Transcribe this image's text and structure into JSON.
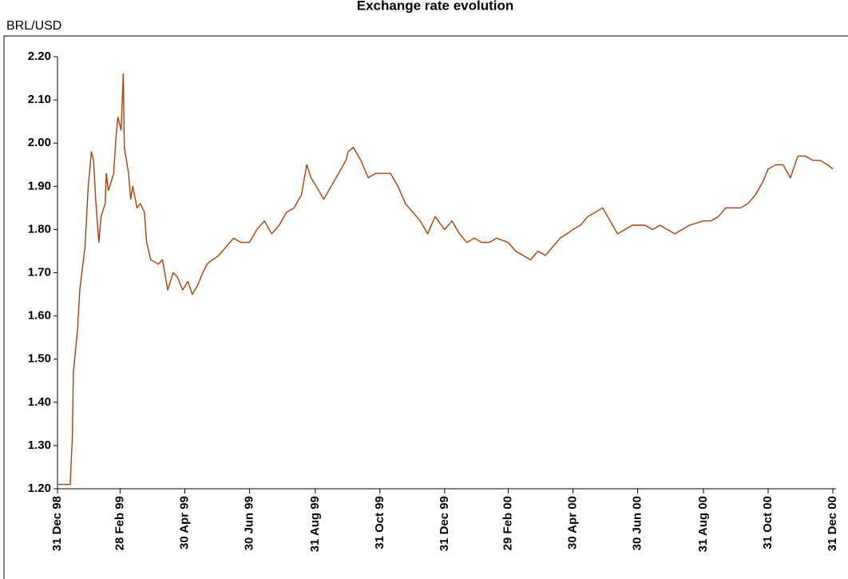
{
  "chart_data": {
    "type": "line",
    "title": "Exchange rate evolution",
    "y_label": "BRL/USD",
    "x": [
      "1998-12-31",
      "1999-01-07",
      "1999-01-12",
      "1999-01-14",
      "1999-01-15",
      "1999-01-19",
      "1999-01-21",
      "1999-01-26",
      "1999-01-29",
      "1999-02-01",
      "1999-02-03",
      "1999-02-05",
      "1999-02-08",
      "1999-02-10",
      "1999-02-14",
      "1999-02-15",
      "1999-02-17",
      "1999-02-22",
      "1999-02-24",
      "1999-02-26",
      "1999-03-01",
      "1999-03-03",
      "1999-03-04",
      "1999-03-08",
      "1999-03-10",
      "1999-03-12",
      "1999-03-16",
      "1999-03-19",
      "1999-03-23",
      "1999-03-25",
      "1999-03-29",
      "1999-04-05",
      "1999-04-09",
      "1999-04-14",
      "1999-04-19",
      "1999-04-23",
      "1999-04-28",
      "1999-05-03",
      "1999-05-07",
      "1999-05-12",
      "1999-05-17",
      "1999-05-21",
      "1999-05-26",
      "1999-06-01",
      "1999-06-08",
      "1999-06-15",
      "1999-06-22",
      "1999-06-30",
      "1999-07-07",
      "1999-07-14",
      "1999-07-21",
      "1999-07-28",
      "1999-08-04",
      "1999-08-11",
      "1999-08-18",
      "1999-08-23",
      "1999-08-27",
      "1999-09-01",
      "1999-09-08",
      "1999-09-15",
      "1999-09-22",
      "1999-09-29",
      "1999-10-01",
      "1999-10-06",
      "1999-10-13",
      "1999-10-20",
      "1999-10-27",
      "1999-11-03",
      "1999-11-10",
      "1999-11-17",
      "1999-11-24",
      "1999-12-01",
      "1999-12-08",
      "1999-12-15",
      "1999-12-22",
      "1999-12-31",
      "2000-01-07",
      "2000-01-14",
      "2000-01-21",
      "2000-01-28",
      "2000-02-04",
      "2000-02-11",
      "2000-02-18",
      "2000-02-29",
      "2000-03-07",
      "2000-03-14",
      "2000-03-21",
      "2000-03-28",
      "2000-04-04",
      "2000-04-11",
      "2000-04-18",
      "2000-04-30",
      "2000-05-07",
      "2000-05-14",
      "2000-05-21",
      "2000-05-28",
      "2000-06-04",
      "2000-06-11",
      "2000-06-18",
      "2000-06-25",
      "2000-06-30",
      "2000-07-07",
      "2000-07-14",
      "2000-07-21",
      "2000-07-28",
      "2000-08-04",
      "2000-08-11",
      "2000-08-18",
      "2000-08-31",
      "2000-09-07",
      "2000-09-14",
      "2000-09-21",
      "2000-09-28",
      "2000-10-05",
      "2000-10-12",
      "2000-10-19",
      "2000-10-26",
      "2000-10-31",
      "2000-11-07",
      "2000-11-14",
      "2000-11-21",
      "2000-11-28",
      "2000-12-05",
      "2000-12-12",
      "2000-12-19",
      "2000-12-26",
      "2000-12-31"
    ],
    "series": [
      {
        "name": "BRL/USD",
        "color": "#a3400c",
        "values": [
          1.21,
          1.21,
          1.21,
          1.32,
          1.47,
          1.57,
          1.66,
          1.76,
          1.9,
          1.98,
          1.96,
          1.87,
          1.77,
          1.83,
          1.86,
          1.93,
          1.89,
          1.93,
          2.01,
          2.06,
          2.03,
          2.16,
          1.99,
          1.93,
          1.87,
          1.9,
          1.85,
          1.86,
          1.84,
          1.77,
          1.73,
          1.72,
          1.73,
          1.66,
          1.7,
          1.69,
          1.66,
          1.68,
          1.65,
          1.67,
          1.7,
          1.72,
          1.73,
          1.74,
          1.76,
          1.78,
          1.77,
          1.77,
          1.8,
          1.82,
          1.79,
          1.81,
          1.84,
          1.85,
          1.88,
          1.95,
          1.92,
          1.9,
          1.87,
          1.9,
          1.93,
          1.96,
          1.98,
          1.99,
          1.96,
          1.92,
          1.93,
          1.93,
          1.93,
          1.9,
          1.86,
          1.84,
          1.82,
          1.79,
          1.83,
          1.8,
          1.82,
          1.79,
          1.77,
          1.78,
          1.77,
          1.77,
          1.78,
          1.77,
          1.75,
          1.74,
          1.73,
          1.75,
          1.74,
          1.76,
          1.78,
          1.8,
          1.81,
          1.83,
          1.84,
          1.85,
          1.82,
          1.79,
          1.8,
          1.81,
          1.81,
          1.81,
          1.8,
          1.81,
          1.8,
          1.79,
          1.8,
          1.81,
          1.82,
          1.82,
          1.83,
          1.85,
          1.85,
          1.85,
          1.86,
          1.88,
          1.91,
          1.94,
          1.95,
          1.95,
          1.92,
          1.97,
          1.97,
          1.96,
          1.96,
          1.95,
          1.94
        ]
      }
    ],
    "xlim": [
      "1998-12-31",
      "2001-01-03"
    ],
    "xticks": [
      {
        "value": "1998-12-31",
        "label": "31 Dec 98"
      },
      {
        "value": "1999-02-28",
        "label": "28 Feb 99"
      },
      {
        "value": "1999-04-30",
        "label": "30 Apr 99"
      },
      {
        "value": "1999-06-30",
        "label": "30 Jun 99"
      },
      {
        "value": "1999-08-31",
        "label": "31 Aug 99"
      },
      {
        "value": "1999-10-31",
        "label": "31 Oct 99"
      },
      {
        "value": "1999-12-31",
        "label": "31 Dec 99"
      },
      {
        "value": "2000-02-29",
        "label": "29 Feb 00"
      },
      {
        "value": "2000-04-30",
        "label": "30 Apr 00"
      },
      {
        "value": "2000-06-30",
        "label": "30 Jun 00"
      },
      {
        "value": "2000-08-31",
        "label": "31 Aug 00"
      },
      {
        "value": "2000-10-31",
        "label": "31 Oct 00"
      },
      {
        "value": "2000-12-31",
        "label": "31 Dec 00"
      }
    ],
    "ylim": [
      1.2,
      2.2
    ],
    "yticks": [
      {
        "value": 1.2,
        "label": "1.20"
      },
      {
        "value": 1.3,
        "label": "1.30"
      },
      {
        "value": 1.4,
        "label": "1.40"
      },
      {
        "value": 1.5,
        "label": "1.50"
      },
      {
        "value": 1.6,
        "label": "1.60"
      },
      {
        "value": 1.7,
        "label": "1.70"
      },
      {
        "value": 1.8,
        "label": "1.80"
      },
      {
        "value": 1.9,
        "label": "1.90"
      },
      {
        "value": 2.0,
        "label": "2.00"
      },
      {
        "value": 2.1,
        "label": "2.10"
      },
      {
        "value": 2.2,
        "label": "2.20"
      }
    ],
    "grid": false
  }
}
